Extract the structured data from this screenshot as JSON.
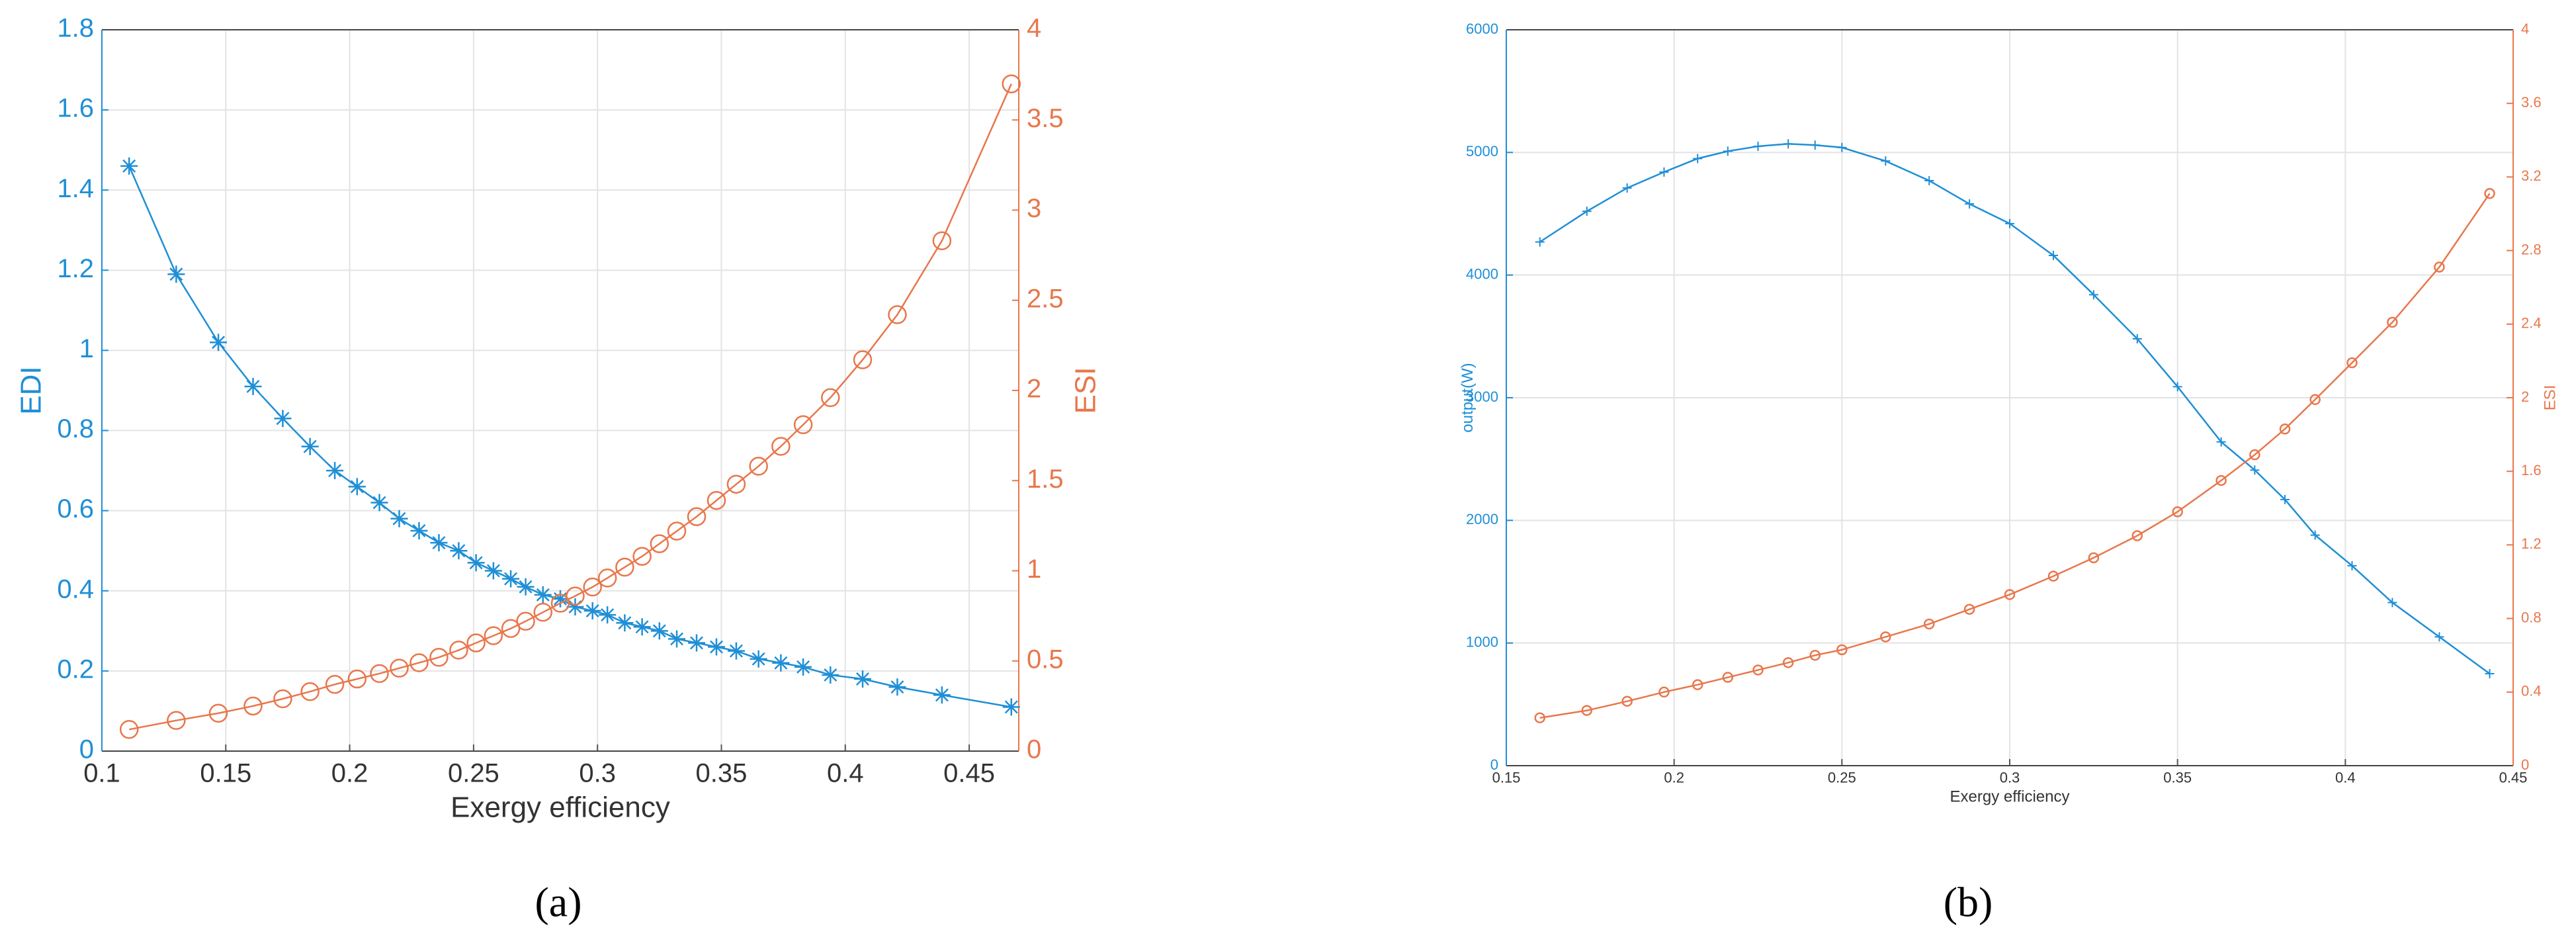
{
  "chart_data": [
    {
      "type": "line",
      "xlabel": "Exergy efficiency",
      "ylabel": "EDI",
      "y2label": "ESI",
      "caption": "(a)",
      "x": [
        0.111,
        0.13,
        0.147,
        0.161,
        0.173,
        0.184,
        0.194,
        0.203,
        0.212,
        0.22,
        0.228,
        0.236,
        0.244,
        0.251,
        0.258,
        0.265,
        0.271,
        0.278,
        0.285,
        0.291,
        0.298,
        0.304,
        0.311,
        0.318,
        0.325,
        0.332,
        0.34,
        0.348,
        0.356,
        0.365,
        0.374,
        0.383,
        0.394,
        0.407,
        0.421,
        0.439,
        0.467
      ],
      "series": [
        {
          "color": "#1f8fd6",
          "marker": "star",
          "values": [
            1.46,
            1.19,
            1.02,
            0.91,
            0.83,
            0.76,
            0.7,
            0.66,
            0.62,
            0.58,
            0.55,
            0.52,
            0.5,
            0.47,
            0.45,
            0.43,
            0.41,
            0.39,
            0.38,
            0.36,
            0.35,
            0.34,
            0.32,
            0.31,
            0.3,
            0.28,
            0.27,
            0.26,
            0.25,
            0.23,
            0.22,
            0.21,
            0.19,
            0.18,
            0.16,
            0.14,
            0.11
          ]
        },
        {
          "color": "#e8774c",
          "marker": "circle",
          "axis": "y2",
          "values": [
            0.12,
            0.17,
            0.21,
            0.25,
            0.29,
            0.33,
            0.37,
            0.4,
            0.43,
            0.46,
            0.49,
            0.52,
            0.56,
            0.6,
            0.64,
            0.68,
            0.72,
            0.77,
            0.82,
            0.86,
            0.91,
            0.96,
            1.02,
            1.08,
            1.15,
            1.22,
            1.3,
            1.39,
            1.48,
            1.58,
            1.69,
            1.81,
            1.96,
            2.17,
            2.42,
            2.83,
            3.7
          ]
        }
      ],
      "xlim": [
        0.1,
        0.47
      ],
      "xticks": [
        0.1,
        0.15,
        0.2,
        0.25,
        0.3,
        0.35,
        0.4,
        0.45
      ],
      "ylim": [
        0,
        1.8
      ],
      "yticks": [
        0,
        0.2,
        0.4,
        0.6,
        0.8,
        1,
        1.2,
        1.4,
        1.6,
        1.8
      ],
      "y2lim": [
        0,
        4
      ],
      "y2ticks": [
        0,
        0.5,
        1,
        1.5,
        2,
        2.5,
        3,
        3.5,
        4
      ],
      "grid": true
    },
    {
      "type": "line",
      "xlabel": "Exergy efficiency",
      "ylabel": "output(W)",
      "y2label": "ESI",
      "caption": "(b)",
      "x": [
        0.16,
        0.174,
        0.186,
        0.197,
        0.207,
        0.216,
        0.225,
        0.234,
        0.242,
        0.25,
        0.263,
        0.276,
        0.288,
        0.3,
        0.313,
        0.325,
        0.338,
        0.35,
        0.363,
        0.373,
        0.382,
        0.391,
        0.402,
        0.414,
        0.428,
        0.443
      ],
      "series": [
        {
          "color": "#1f8fd6",
          "marker": "plus",
          "values": [
            4270,
            4520,
            4710,
            4840,
            4950,
            5010,
            5050,
            5070,
            5060,
            5040,
            4930,
            4770,
            4580,
            4420,
            4160,
            3840,
            3480,
            3090,
            2640,
            2410,
            2170,
            1880,
            1630,
            1330,
            1050,
            750
          ]
        },
        {
          "color": "#e8774c",
          "marker": "circle",
          "axis": "y2",
          "values": [
            0.26,
            0.3,
            0.35,
            0.4,
            0.44,
            0.48,
            0.52,
            0.56,
            0.6,
            0.63,
            0.7,
            0.77,
            0.85,
            0.93,
            1.03,
            1.13,
            1.25,
            1.38,
            1.55,
            1.69,
            1.83,
            1.99,
            2.19,
            2.41,
            2.71,
            3.11
          ]
        }
      ],
      "xlim": [
        0.15,
        0.45
      ],
      "xticks": [
        0.15,
        0.2,
        0.25,
        0.3,
        0.35,
        0.4,
        0.45
      ],
      "ylim": [
        0,
        6000
      ],
      "yticks": [
        0,
        1000,
        2000,
        3000,
        4000,
        5000,
        6000
      ],
      "y2lim": [
        0,
        4
      ],
      "y2ticks": [
        0,
        0.4,
        0.8,
        1.2,
        1.6,
        2,
        2.4,
        2.8,
        3.2,
        3.6,
        4
      ],
      "grid": true
    }
  ]
}
